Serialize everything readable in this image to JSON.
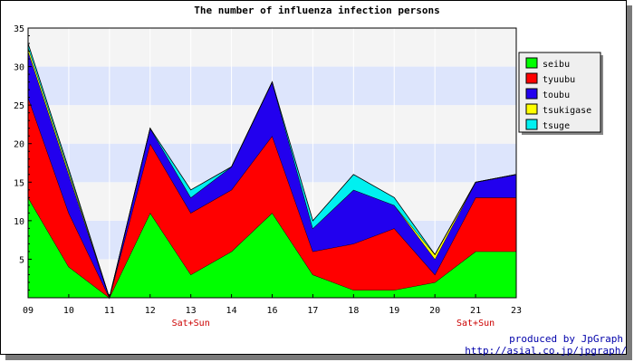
{
  "chart_data": {
    "type": "area",
    "stacked": true,
    "title": "The number of influenza infection persons",
    "categories": [
      "09",
      "10",
      "11",
      "12",
      "13",
      "14",
      "16",
      "17",
      "18",
      "19",
      "20",
      "21",
      "23"
    ],
    "weekend_labels": [
      {
        "category": "13",
        "text": "Sat+Sun"
      },
      {
        "category": "21",
        "text": "Sat+Sun"
      }
    ],
    "yticks": [
      5,
      10,
      15,
      20,
      25,
      30,
      35
    ],
    "ylim": [
      0,
      35
    ],
    "grid": true,
    "legend_position": "right",
    "series": [
      {
        "name": "seibu",
        "color": "#00ff00",
        "values": [
          13,
          4,
          0,
          11,
          3,
          6,
          11,
          3,
          1,
          1,
          2,
          6,
          6
        ]
      },
      {
        "name": "tyuubu",
        "color": "#ff0000",
        "values": [
          13,
          7,
          0,
          9,
          8,
          8,
          10,
          3,
          6,
          8,
          1,
          7,
          7
        ]
      },
      {
        "name": "toubu",
        "color": "#2200ee",
        "values": [
          6,
          5,
          0,
          2,
          2,
          3,
          7,
          3,
          7,
          3,
          2,
          2,
          3
        ]
      },
      {
        "name": "tsukigase",
        "color": "#ffff00",
        "values": [
          0.5,
          0.4,
          0,
          0,
          0,
          0,
          0,
          0,
          0,
          0,
          0.6,
          0,
          0
        ]
      },
      {
        "name": "tsuge",
        "color": "#00f0f0",
        "values": [
          0.5,
          0.3,
          0,
          0,
          1,
          0,
          0,
          1,
          2,
          1,
          0,
          0,
          0
        ]
      }
    ]
  },
  "credits": {
    "line1": "produced by JpGraph",
    "line2": "http://asial.co.jp/jpgraph/"
  }
}
